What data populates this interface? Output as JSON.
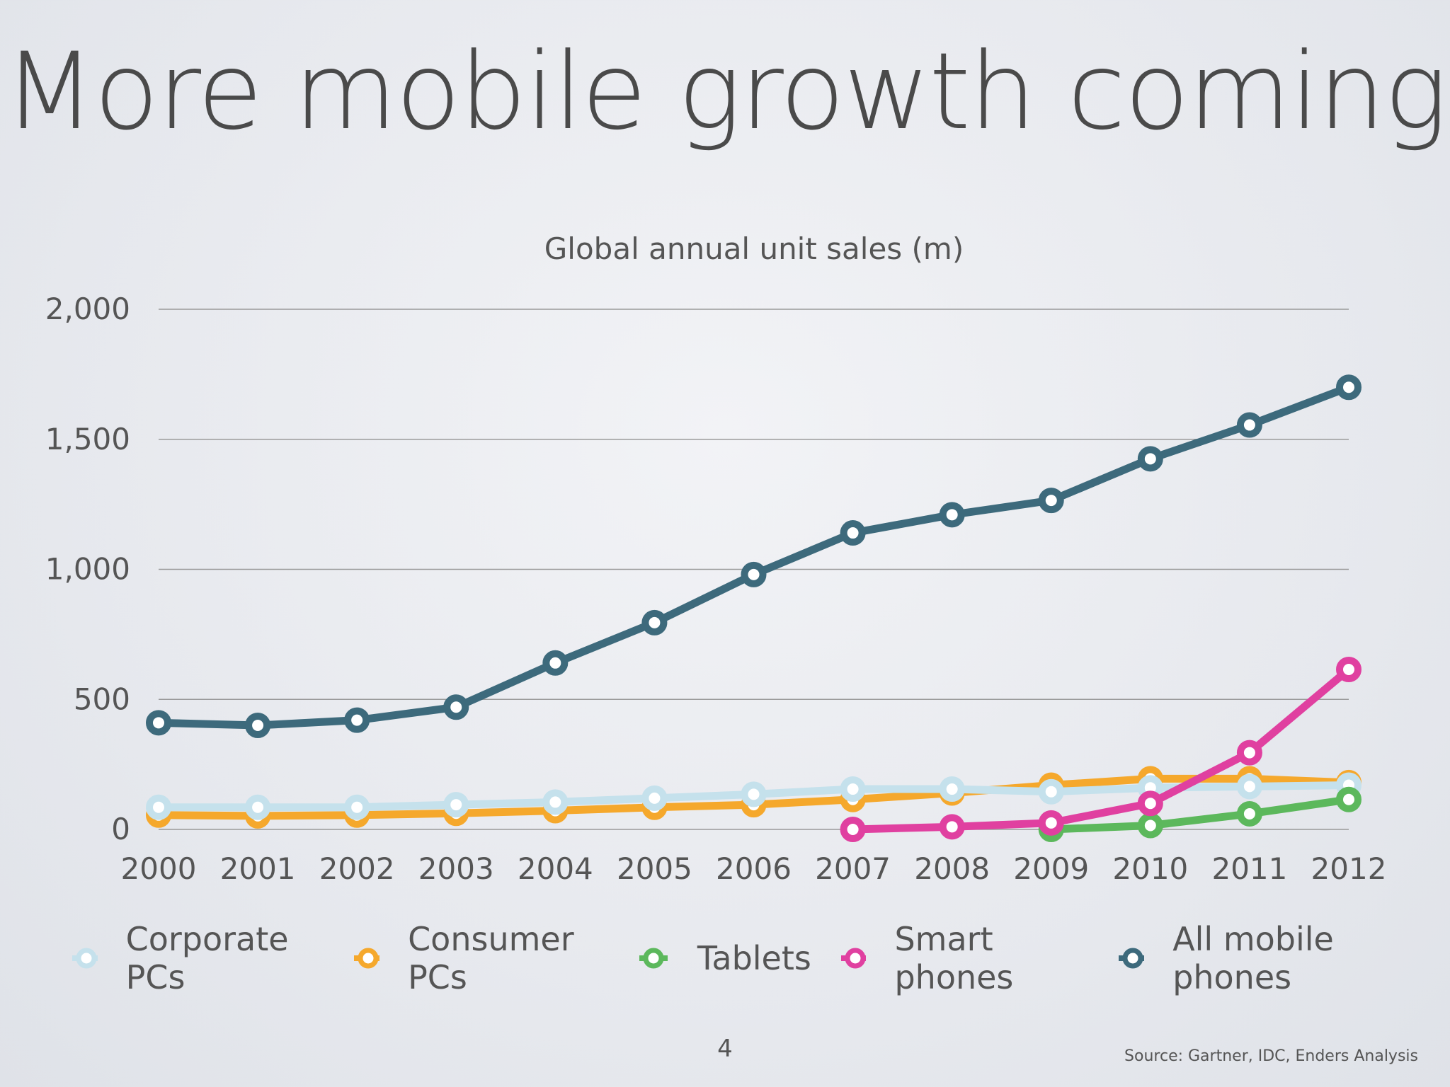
{
  "slide": {
    "title": "More mobile growth coming",
    "page_number": "4",
    "source": "Source: Gartner, IDC, Enders Analysis"
  },
  "chart_data": {
    "type": "line",
    "title": "Global annual unit sales (m)",
    "xlabel": "",
    "ylabel": "",
    "ylim": [
      0,
      2000
    ],
    "yticks": [
      0,
      500,
      1000,
      1500,
      2000
    ],
    "ytick_labels": [
      "0",
      "500",
      "1,000",
      "1,500",
      "2,000"
    ],
    "categories": [
      "2000",
      "2001",
      "2002",
      "2003",
      "2004",
      "2005",
      "2006",
      "2007",
      "2008",
      "2009",
      "2010",
      "2011",
      "2012"
    ],
    "legend_position": "bottom",
    "series": [
      {
        "name": "Consumer PCs",
        "color": "#f5a82c",
        "values": [
          55,
          52,
          55,
          62,
          72,
          85,
          95,
          115,
          140,
          170,
          195,
          195,
          180
        ]
      },
      {
        "name": "Corporate PCs",
        "color": "#c5e1ec",
        "values": [
          85,
          85,
          85,
          95,
          105,
          120,
          135,
          155,
          155,
          145,
          160,
          165,
          170
        ]
      },
      {
        "name": "Tablets",
        "color": "#5cb85c",
        "values": [
          null,
          null,
          null,
          null,
          null,
          null,
          null,
          null,
          null,
          0,
          15,
          60,
          115
        ]
      },
      {
        "name": "Smart phones",
        "color": "#e040a0",
        "values": [
          null,
          null,
          null,
          null,
          null,
          null,
          null,
          0,
          10,
          25,
          100,
          295,
          615
        ]
      },
      {
        "name": "All mobile phones",
        "color": "#3d6a7c",
        "values": [
          410,
          400,
          420,
          470,
          640,
          795,
          980,
          1140,
          1210,
          1265,
          1425,
          1555,
          1700
        ]
      }
    ],
    "legend_order": [
      "Corporate PCs",
      "Consumer PCs",
      "Tablets",
      "Smart phones",
      "All mobile phones"
    ]
  }
}
